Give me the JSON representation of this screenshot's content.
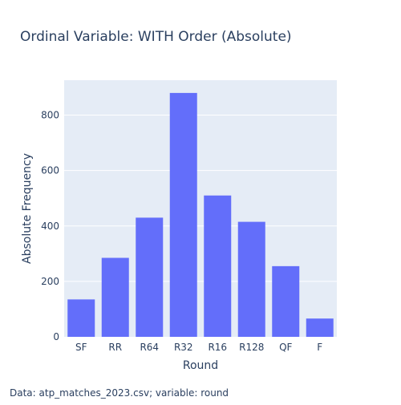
{
  "colors": {
    "plot_bg": "#e5ecf6",
    "bar": "#636efa",
    "grid": "#ffffff",
    "text": "#2a3f5f"
  },
  "annotation": "Data: atp_matches_2023.csv; variable: round",
  "chart_data": {
    "type": "bar",
    "title": "Ordinal Variable: WITH Order (Absolute)",
    "xlabel": "Round",
    "ylabel": "Absolute Frequency",
    "categories": [
      "SF",
      "RR",
      "R64",
      "R32",
      "R16",
      "R128",
      "QF",
      "F"
    ],
    "values": [
      135,
      285,
      430,
      880,
      510,
      415,
      255,
      66
    ],
    "ylim": [
      0,
      926
    ],
    "yticks": [
      0,
      200,
      400,
      600,
      800
    ],
    "grid": true,
    "legend": "none"
  }
}
